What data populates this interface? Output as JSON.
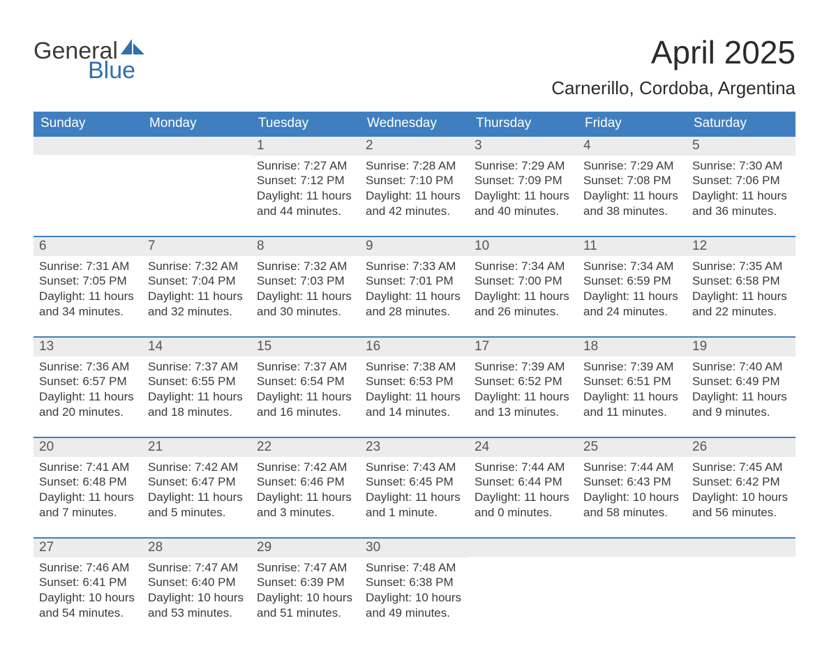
{
  "brand": {
    "name_top": "General",
    "name_bottom": "Blue",
    "top_color": "#3b3b3b",
    "bottom_color": "#2f6fb0",
    "shape_color": "#2f6fb0"
  },
  "title": "April 2025",
  "location": "Carnerillo, Cordoba, Argentina",
  "colors": {
    "header_bg": "#3f7fbf",
    "header_fg": "#ffffff",
    "daynum_bg": "#ececec",
    "daynum_fg": "#555555",
    "week_border": "#3f7fbf",
    "body_text": "#3a3a3a",
    "page_bg": "#ffffff"
  },
  "fonts": {
    "title_size_pt": 34,
    "location_size_pt": 20,
    "header_size_pt": 14,
    "body_size_pt": 13
  },
  "day_names": [
    "Sunday",
    "Monday",
    "Tuesday",
    "Wednesday",
    "Thursday",
    "Friday",
    "Saturday"
  ],
  "weeks": [
    [
      {
        "n": "",
        "sunrise": "",
        "sunset": "",
        "dayl1": "",
        "dayl2": ""
      },
      {
        "n": "",
        "sunrise": "",
        "sunset": "",
        "dayl1": "",
        "dayl2": ""
      },
      {
        "n": "1",
        "sunrise": "Sunrise: 7:27 AM",
        "sunset": "Sunset: 7:12 PM",
        "dayl1": "Daylight: 11 hours",
        "dayl2": "and 44 minutes."
      },
      {
        "n": "2",
        "sunrise": "Sunrise: 7:28 AM",
        "sunset": "Sunset: 7:10 PM",
        "dayl1": "Daylight: 11 hours",
        "dayl2": "and 42 minutes."
      },
      {
        "n": "3",
        "sunrise": "Sunrise: 7:29 AM",
        "sunset": "Sunset: 7:09 PM",
        "dayl1": "Daylight: 11 hours",
        "dayl2": "and 40 minutes."
      },
      {
        "n": "4",
        "sunrise": "Sunrise: 7:29 AM",
        "sunset": "Sunset: 7:08 PM",
        "dayl1": "Daylight: 11 hours",
        "dayl2": "and 38 minutes."
      },
      {
        "n": "5",
        "sunrise": "Sunrise: 7:30 AM",
        "sunset": "Sunset: 7:06 PM",
        "dayl1": "Daylight: 11 hours",
        "dayl2": "and 36 minutes."
      }
    ],
    [
      {
        "n": "6",
        "sunrise": "Sunrise: 7:31 AM",
        "sunset": "Sunset: 7:05 PM",
        "dayl1": "Daylight: 11 hours",
        "dayl2": "and 34 minutes."
      },
      {
        "n": "7",
        "sunrise": "Sunrise: 7:32 AM",
        "sunset": "Sunset: 7:04 PM",
        "dayl1": "Daylight: 11 hours",
        "dayl2": "and 32 minutes."
      },
      {
        "n": "8",
        "sunrise": "Sunrise: 7:32 AM",
        "sunset": "Sunset: 7:03 PM",
        "dayl1": "Daylight: 11 hours",
        "dayl2": "and 30 minutes."
      },
      {
        "n": "9",
        "sunrise": "Sunrise: 7:33 AM",
        "sunset": "Sunset: 7:01 PM",
        "dayl1": "Daylight: 11 hours",
        "dayl2": "and 28 minutes."
      },
      {
        "n": "10",
        "sunrise": "Sunrise: 7:34 AM",
        "sunset": "Sunset: 7:00 PM",
        "dayl1": "Daylight: 11 hours",
        "dayl2": "and 26 minutes."
      },
      {
        "n": "11",
        "sunrise": "Sunrise: 7:34 AM",
        "sunset": "Sunset: 6:59 PM",
        "dayl1": "Daylight: 11 hours",
        "dayl2": "and 24 minutes."
      },
      {
        "n": "12",
        "sunrise": "Sunrise: 7:35 AM",
        "sunset": "Sunset: 6:58 PM",
        "dayl1": "Daylight: 11 hours",
        "dayl2": "and 22 minutes."
      }
    ],
    [
      {
        "n": "13",
        "sunrise": "Sunrise: 7:36 AM",
        "sunset": "Sunset: 6:57 PM",
        "dayl1": "Daylight: 11 hours",
        "dayl2": "and 20 minutes."
      },
      {
        "n": "14",
        "sunrise": "Sunrise: 7:37 AM",
        "sunset": "Sunset: 6:55 PM",
        "dayl1": "Daylight: 11 hours",
        "dayl2": "and 18 minutes."
      },
      {
        "n": "15",
        "sunrise": "Sunrise: 7:37 AM",
        "sunset": "Sunset: 6:54 PM",
        "dayl1": "Daylight: 11 hours",
        "dayl2": "and 16 minutes."
      },
      {
        "n": "16",
        "sunrise": "Sunrise: 7:38 AM",
        "sunset": "Sunset: 6:53 PM",
        "dayl1": "Daylight: 11 hours",
        "dayl2": "and 14 minutes."
      },
      {
        "n": "17",
        "sunrise": "Sunrise: 7:39 AM",
        "sunset": "Sunset: 6:52 PM",
        "dayl1": "Daylight: 11 hours",
        "dayl2": "and 13 minutes."
      },
      {
        "n": "18",
        "sunrise": "Sunrise: 7:39 AM",
        "sunset": "Sunset: 6:51 PM",
        "dayl1": "Daylight: 11 hours",
        "dayl2": "and 11 minutes."
      },
      {
        "n": "19",
        "sunrise": "Sunrise: 7:40 AM",
        "sunset": "Sunset: 6:49 PM",
        "dayl1": "Daylight: 11 hours",
        "dayl2": "and 9 minutes."
      }
    ],
    [
      {
        "n": "20",
        "sunrise": "Sunrise: 7:41 AM",
        "sunset": "Sunset: 6:48 PM",
        "dayl1": "Daylight: 11 hours",
        "dayl2": "and 7 minutes."
      },
      {
        "n": "21",
        "sunrise": "Sunrise: 7:42 AM",
        "sunset": "Sunset: 6:47 PM",
        "dayl1": "Daylight: 11 hours",
        "dayl2": "and 5 minutes."
      },
      {
        "n": "22",
        "sunrise": "Sunrise: 7:42 AM",
        "sunset": "Sunset: 6:46 PM",
        "dayl1": "Daylight: 11 hours",
        "dayl2": "and 3 minutes."
      },
      {
        "n": "23",
        "sunrise": "Sunrise: 7:43 AM",
        "sunset": "Sunset: 6:45 PM",
        "dayl1": "Daylight: 11 hours",
        "dayl2": "and 1 minute."
      },
      {
        "n": "24",
        "sunrise": "Sunrise: 7:44 AM",
        "sunset": "Sunset: 6:44 PM",
        "dayl1": "Daylight: 11 hours",
        "dayl2": "and 0 minutes."
      },
      {
        "n": "25",
        "sunrise": "Sunrise: 7:44 AM",
        "sunset": "Sunset: 6:43 PM",
        "dayl1": "Daylight: 10 hours",
        "dayl2": "and 58 minutes."
      },
      {
        "n": "26",
        "sunrise": "Sunrise: 7:45 AM",
        "sunset": "Sunset: 6:42 PM",
        "dayl1": "Daylight: 10 hours",
        "dayl2": "and 56 minutes."
      }
    ],
    [
      {
        "n": "27",
        "sunrise": "Sunrise: 7:46 AM",
        "sunset": "Sunset: 6:41 PM",
        "dayl1": "Daylight: 10 hours",
        "dayl2": "and 54 minutes."
      },
      {
        "n": "28",
        "sunrise": "Sunrise: 7:47 AM",
        "sunset": "Sunset: 6:40 PM",
        "dayl1": "Daylight: 10 hours",
        "dayl2": "and 53 minutes."
      },
      {
        "n": "29",
        "sunrise": "Sunrise: 7:47 AM",
        "sunset": "Sunset: 6:39 PM",
        "dayl1": "Daylight: 10 hours",
        "dayl2": "and 51 minutes."
      },
      {
        "n": "30",
        "sunrise": "Sunrise: 7:48 AM",
        "sunset": "Sunset: 6:38 PM",
        "dayl1": "Daylight: 10 hours",
        "dayl2": "and 49 minutes."
      },
      {
        "n": "",
        "sunrise": "",
        "sunset": "",
        "dayl1": "",
        "dayl2": ""
      },
      {
        "n": "",
        "sunrise": "",
        "sunset": "",
        "dayl1": "",
        "dayl2": ""
      },
      {
        "n": "",
        "sunrise": "",
        "sunset": "",
        "dayl1": "",
        "dayl2": ""
      }
    ]
  ]
}
